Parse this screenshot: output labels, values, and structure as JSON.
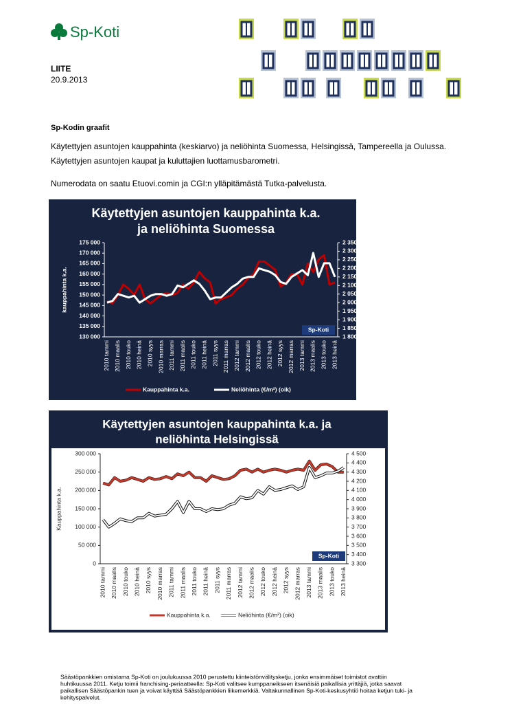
{
  "document": {
    "logo": "Sp-Koti",
    "label": "LIITE",
    "date": "20.9.2013",
    "heading": "Sp-Kodin graafit",
    "paragraphs": [
      "Käytettyjen asuntojen kauppahinta (keskiarvo) ja neliöhinta Suomessa, Helsingissä, Tampereella ja Oulussa.",
      "Käytettyjen asuntojen kaupat ja kuluttajien luottamusbarometri.",
      "Numerodata on saatu Etuovi.comin ja CGI:n ylläpitämästä Tutka-palvelusta."
    ],
    "footer": [
      "Säästöpankkien omistama Sp-Koti on joulukuussa 2010 perustettu kiinteistönvälitysketju, jonka ensimmäiset toimistot avattiin",
      "huhtikuussa 2011. Ketju toimii franchising-periaatteella: Sp-Koti valitsee kumppaneikseen itsenäisiä paikallisia yrittäjiä, jotka saavat",
      "paikallisen Säästöpankin tuen ja voivat käyttää Säästöpankkien liikemerkkiä. Valtakunnallinen Sp-Koti-keskusyhtiö hoitaa ketjun tuki- ja",
      "kehityspalvelut."
    ]
  },
  "chart_data": [
    {
      "type": "line",
      "title": [
        "Käytettyjen asuntojen kauppahinta k.a.",
        "ja neliöhinta  Suomessa"
      ],
      "ylabel": "kauppahinta k.a.",
      "badge": "Sp-Koti",
      "background": "#17233f",
      "plot_background": "#17233f",
      "text_color": "#ffffff",
      "line_outline": null,
      "categories": [
        "2010 tammi",
        null,
        "2010 maalis",
        null,
        "2010 touko",
        null,
        "2010 heinä",
        null,
        "2010 syys",
        null,
        "2010 marras",
        null,
        "2011 tammi",
        null,
        "2011 maalis",
        null,
        "2011 touko",
        null,
        "2011 heinä",
        null,
        "2011 syys",
        null,
        "2011 marras",
        null,
        "2012 tammi",
        null,
        "2012 maalis",
        null,
        "2012 touko",
        null,
        "2012 heinä",
        null,
        "2012 syys",
        null,
        "2012 marras",
        null,
        "2013 tammi",
        null,
        "2013 maalis",
        null,
        "2013 touko",
        null,
        "2013 heinä"
      ],
      "series": [
        {
          "name": "Kauppahinta k.a.",
          "color": "#c00000",
          "axis": "y",
          "values": [
            147000,
            146000,
            150000,
            155000,
            153000,
            150000,
            155000,
            148000,
            146000,
            148000,
            150000,
            151000,
            150000,
            151000,
            155000,
            153000,
            156000,
            161000,
            158000,
            156000,
            146000,
            148000,
            149000,
            150000,
            153000,
            155000,
            158000,
            160000,
            166000,
            166000,
            164000,
            162000,
            154000,
            156000,
            160000,
            160000,
            155000,
            165000,
            161000,
            167000,
            169000,
            155000,
            156000
          ]
        },
        {
          "name": "Neliöhinta (€/m²) (oik)",
          "color": "#ffffff",
          "axis": "y2",
          "values": [
            2000,
            2010,
            2050,
            2040,
            2030,
            2040,
            2000,
            2020,
            2040,
            2050,
            2050,
            2040,
            2050,
            2100,
            2090,
            2110,
            2130,
            2110,
            2070,
            2020,
            2030,
            2030,
            2060,
            2090,
            2110,
            2140,
            2150,
            2150,
            2200,
            2190,
            2180,
            2160,
            2120,
            2110,
            2150,
            2170,
            2190,
            2160,
            2290,
            2150,
            2230,
            2230,
            2150
          ]
        }
      ],
      "ylim": [
        130000,
        175000
      ],
      "yticks": [
        {
          "value": 130000,
          "label": "130 000"
        },
        {
          "value": 135000,
          "label": "135 000"
        },
        {
          "value": 140000,
          "label": "140 000"
        },
        {
          "value": 145000,
          "label": "145 000"
        },
        {
          "value": 150000,
          "label": "150 000"
        },
        {
          "value": 155000,
          "label": "155 000"
        },
        {
          "value": 160000,
          "label": "160 000"
        },
        {
          "value": 165000,
          "label": "165 000"
        },
        {
          "value": 170000,
          "label": "170 000"
        },
        {
          "value": 175000,
          "label": "175 000"
        }
      ],
      "y2lim": [
        1800,
        2350
      ],
      "y2ticks": [
        {
          "value": 1800,
          "label": "1 800"
        },
        {
          "value": 1850,
          "label": "1 850"
        },
        {
          "value": 1900,
          "label": "1 900"
        },
        {
          "value": 1950,
          "label": "1 950"
        },
        {
          "value": 2000,
          "label": "2 000"
        },
        {
          "value": 2050,
          "label": "2 050"
        },
        {
          "value": 2100,
          "label": "2 100"
        },
        {
          "value": 2150,
          "label": "2 150"
        },
        {
          "value": 2200,
          "label": "2 200"
        },
        {
          "value": 2250,
          "label": "2 250"
        },
        {
          "value": 2300,
          "label": "2 300"
        },
        {
          "value": 2350,
          "label": "2 350"
        }
      ]
    },
    {
      "type": "line",
      "title": [
        "Käytettyjen asuntojen kauppahinta k.a. ja",
        "neliöhinta Helsingissä"
      ],
      "ylabel": "Kauppahinta k.a.",
      "badge": "Sp-Koti",
      "background": "#17233f",
      "plot_background": "#ffffff",
      "text_color": "#222222",
      "line_outline": "#111111",
      "categories": [
        "2010 tammi",
        null,
        "2010 maalis",
        null,
        "2010 touko",
        null,
        "2010 heinä",
        null,
        "2010 syys",
        null,
        "2010 marras",
        null,
        "2011 tammi",
        null,
        "2011 maalis",
        null,
        "2011 touko",
        null,
        "2011 heinä",
        null,
        "2011 syys",
        null,
        "2011 marras",
        null,
        "2012 tammi",
        null,
        "2012 maalis",
        null,
        "2012 touko",
        null,
        "2012 heinä",
        null,
        "2012 syys",
        null,
        "2012 marras",
        null,
        "2013 tammi",
        null,
        "2013 maalis",
        null,
        "2013 touko",
        null,
        "2013 heinä"
      ],
      "series": [
        {
          "name": "Kauppahinta k.a.",
          "color": "#c0392b",
          "axis": "y",
          "values": [
            220000,
            215000,
            235000,
            225000,
            228000,
            235000,
            230000,
            225000,
            235000,
            230000,
            232000,
            238000,
            232000,
            245000,
            240000,
            250000,
            235000,
            235000,
            225000,
            240000,
            235000,
            230000,
            232000,
            240000,
            255000,
            258000,
            250000,
            258000,
            250000,
            255000,
            258000,
            255000,
            250000,
            255000,
            258000,
            255000,
            280000,
            255000,
            270000,
            272000,
            265000,
            250000,
            250000
          ]
        },
        {
          "name": "Neliöhinta (€/m²) (oik)",
          "color": "#ffffff",
          "axis": "y2",
          "values": [
            3780,
            3700,
            3740,
            3790,
            3770,
            3760,
            3800,
            3800,
            3850,
            3820,
            3830,
            3840,
            3900,
            3980,
            3860,
            3980,
            3900,
            3900,
            3870,
            3900,
            3890,
            3900,
            3940,
            3960,
            4030,
            4010,
            4020,
            4100,
            4060,
            4140,
            4100,
            4110,
            4130,
            4150,
            4110,
            4140,
            4350,
            4240,
            4260,
            4290,
            4290,
            4310,
            4350
          ]
        }
      ],
      "ylim": [
        0,
        300000
      ],
      "yticks": [
        0,
        {
          "value": 50000,
          "label": "50 000"
        },
        {
          "value": 100000,
          "label": "100 000"
        },
        {
          "value": 150000,
          "label": "150 000"
        },
        {
          "value": 200000,
          "label": "200 000"
        },
        {
          "value": 250000,
          "label": "250 000"
        },
        {
          "value": 300000,
          "label": "300 000"
        }
      ],
      "y2lim": [
        3300,
        4500
      ],
      "y2ticks": [
        {
          "value": 3300,
          "label": "3 300"
        },
        {
          "value": 3400,
          "label": "3 400"
        },
        {
          "value": 3500,
          "label": "3 500"
        },
        {
          "value": 3600,
          "label": "3 600"
        },
        {
          "value": 3700,
          "label": "3 700"
        },
        {
          "value": 3800,
          "label": "3 800"
        },
        {
          "value": 3900,
          "label": "3 900"
        },
        {
          "value": 4000,
          "label": "4 000"
        },
        {
          "value": 4100,
          "label": "4 100"
        },
        {
          "value": 4200,
          "label": "4 200"
        },
        {
          "value": 4300,
          "label": "4 300"
        },
        {
          "value": 4400,
          "label": "4 400"
        },
        {
          "value": 4500,
          "label": "4 500"
        }
      ]
    }
  ]
}
